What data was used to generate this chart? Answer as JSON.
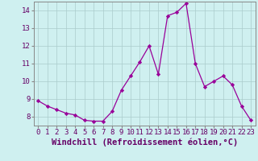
{
  "x": [
    0,
    1,
    2,
    3,
    4,
    5,
    6,
    7,
    8,
    9,
    10,
    11,
    12,
    13,
    14,
    15,
    16,
    17,
    18,
    19,
    20,
    21,
    22,
    23
  ],
  "y": [
    8.9,
    8.6,
    8.4,
    8.2,
    8.1,
    7.8,
    7.75,
    7.75,
    8.3,
    9.5,
    10.3,
    11.1,
    12.0,
    10.4,
    13.7,
    13.9,
    14.4,
    11.0,
    9.7,
    10.0,
    10.3,
    9.8,
    8.6,
    7.8
  ],
  "xlabel": "Windchill (Refroidissement éolien,°C)",
  "ylim": [
    7.5,
    14.5
  ],
  "xlim": [
    -0.5,
    23.5
  ],
  "yticks": [
    8,
    9,
    10,
    11,
    12,
    13,
    14
  ],
  "xticks": [
    0,
    1,
    2,
    3,
    4,
    5,
    6,
    7,
    8,
    9,
    10,
    11,
    12,
    13,
    14,
    15,
    16,
    17,
    18,
    19,
    20,
    21,
    22,
    23
  ],
  "line_color": "#990099",
  "marker": "D",
  "marker_size": 2.2,
  "bg_color": "#cff0f0",
  "grid_color": "#aacccc",
  "tick_label_fontsize": 6.5,
  "xlabel_fontsize": 7.5
}
